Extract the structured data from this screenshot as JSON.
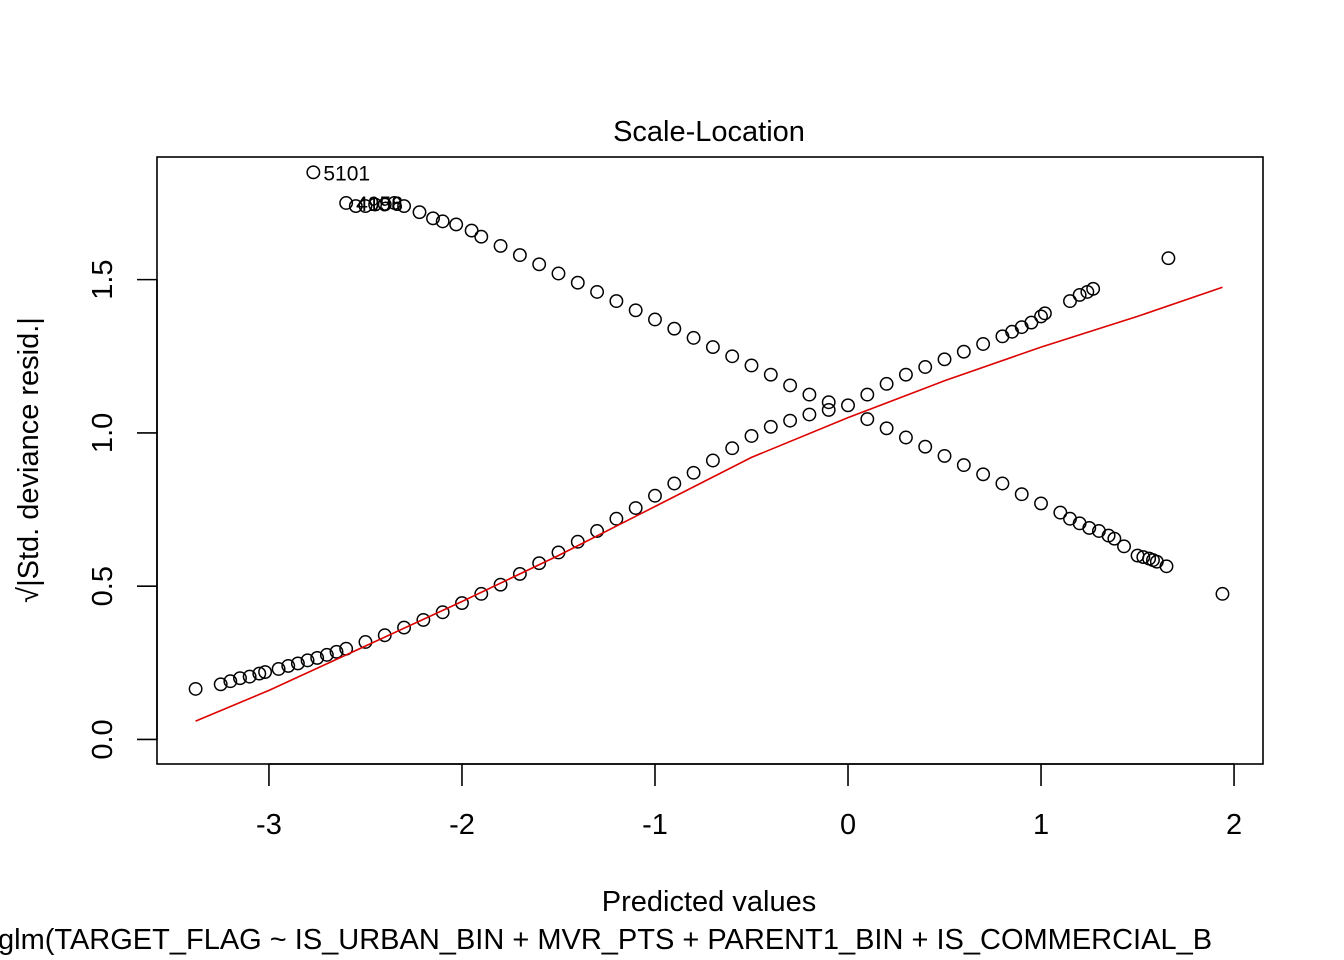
{
  "chart_data": {
    "type": "scatter",
    "title": "Scale-Location",
    "xlabel": "Predicted values",
    "ylabel": "√|Std. deviance resid.|",
    "ylabel_radical": "√",
    "ylabel_text": "|Std. deviance resid.|",
    "subtitle": "glm(TARGET_FLAG ~ IS_URBAN_BIN + MVR_PTS + PARENT1_BIN + IS_COMMERCIAL_B",
    "xlim": [
      -3.58,
      2.15
    ],
    "ylim": [
      -0.08,
      1.9
    ],
    "xticks": [
      -3,
      -2,
      -1,
      0,
      1,
      2
    ],
    "yticks": [
      0.0,
      0.5,
      1.0,
      1.5
    ],
    "ytick_labels": [
      "0.0",
      "0.5",
      "1.0",
      "1.5"
    ],
    "grid": false,
    "point_color": "#000000",
    "smooth_color": "#dd0000",
    "series": [
      {
        "values": [
          {
            "x": -3.38,
            "y": 0.165
          },
          {
            "x": -3.25,
            "y": 0.18
          },
          {
            "x": -3.2,
            "y": 0.19
          },
          {
            "x": -3.15,
            "y": 0.2
          },
          {
            "x": -3.1,
            "y": 0.205
          },
          {
            "x": -3.05,
            "y": 0.215
          },
          {
            "x": -3.02,
            "y": 0.22
          },
          {
            "x": -2.95,
            "y": 0.23
          },
          {
            "x": -2.9,
            "y": 0.24
          },
          {
            "x": -2.85,
            "y": 0.248
          },
          {
            "x": -2.8,
            "y": 0.258
          },
          {
            "x": -2.75,
            "y": 0.266
          },
          {
            "x": -2.7,
            "y": 0.276
          },
          {
            "x": -2.65,
            "y": 0.286
          },
          {
            "x": -2.6,
            "y": 0.296
          },
          {
            "x": -2.5,
            "y": 0.318
          },
          {
            "x": -2.4,
            "y": 0.34
          },
          {
            "x": -2.3,
            "y": 0.365
          },
          {
            "x": -2.2,
            "y": 0.39
          },
          {
            "x": -2.1,
            "y": 0.415
          },
          {
            "x": -2.0,
            "y": 0.445
          },
          {
            "x": -1.9,
            "y": 0.475
          },
          {
            "x": -1.8,
            "y": 0.505
          },
          {
            "x": -1.7,
            "y": 0.54
          },
          {
            "x": -1.6,
            "y": 0.575
          },
          {
            "x": -1.5,
            "y": 0.61
          },
          {
            "x": -1.4,
            "y": 0.645
          },
          {
            "x": -1.3,
            "y": 0.68
          },
          {
            "x": -1.2,
            "y": 0.72
          },
          {
            "x": -1.1,
            "y": 0.755
          },
          {
            "x": -1.0,
            "y": 0.795
          },
          {
            "x": -0.9,
            "y": 0.835
          },
          {
            "x": -0.8,
            "y": 0.87
          },
          {
            "x": -0.7,
            "y": 0.91
          },
          {
            "x": -0.6,
            "y": 0.95
          },
          {
            "x": -0.5,
            "y": 0.99
          },
          {
            "x": -0.4,
            "y": 1.02
          },
          {
            "x": -0.3,
            "y": 1.04
          },
          {
            "x": -0.2,
            "y": 1.06
          },
          {
            "x": -0.1,
            "y": 1.075
          },
          {
            "x": 0.0,
            "y": 1.09
          },
          {
            "x": 0.1,
            "y": 1.125
          },
          {
            "x": 0.2,
            "y": 1.16
          },
          {
            "x": 0.3,
            "y": 1.19
          },
          {
            "x": 0.4,
            "y": 1.215
          },
          {
            "x": 0.5,
            "y": 1.24
          },
          {
            "x": 0.6,
            "y": 1.265
          },
          {
            "x": 0.7,
            "y": 1.29
          },
          {
            "x": 0.8,
            "y": 1.315
          },
          {
            "x": 0.85,
            "y": 1.33
          },
          {
            "x": 0.9,
            "y": 1.345
          },
          {
            "x": 0.95,
            "y": 1.36
          },
          {
            "x": 1.0,
            "y": 1.38
          },
          {
            "x": 1.02,
            "y": 1.39
          },
          {
            "x": 1.15,
            "y": 1.43
          },
          {
            "x": 1.2,
            "y": 1.45
          },
          {
            "x": 1.24,
            "y": 1.46
          },
          {
            "x": 1.27,
            "y": 1.47
          },
          {
            "x": 1.66,
            "y": 1.57
          },
          {
            "x": -2.77,
            "y": 1.85
          },
          {
            "x": -2.6,
            "y": 1.75
          },
          {
            "x": -2.55,
            "y": 1.74
          },
          {
            "x": -2.5,
            "y": 1.74
          },
          {
            "x": -2.45,
            "y": 1.745
          },
          {
            "x": -2.4,
            "y": 1.745
          },
          {
            "x": -2.35,
            "y": 1.75
          },
          {
            "x": -2.3,
            "y": 1.74
          },
          {
            "x": -2.22,
            "y": 1.72
          },
          {
            "x": -2.15,
            "y": 1.7
          },
          {
            "x": -2.1,
            "y": 1.69
          },
          {
            "x": -2.03,
            "y": 1.68
          },
          {
            "x": -1.95,
            "y": 1.66
          },
          {
            "x": -1.9,
            "y": 1.64
          },
          {
            "x": -1.8,
            "y": 1.61
          },
          {
            "x": -1.7,
            "y": 1.58
          },
          {
            "x": -1.6,
            "y": 1.55
          },
          {
            "x": -1.5,
            "y": 1.52
          },
          {
            "x": -1.4,
            "y": 1.49
          },
          {
            "x": -1.3,
            "y": 1.46
          },
          {
            "x": -1.2,
            "y": 1.43
          },
          {
            "x": -1.1,
            "y": 1.4
          },
          {
            "x": -1.0,
            "y": 1.37
          },
          {
            "x": -0.9,
            "y": 1.34
          },
          {
            "x": -0.8,
            "y": 1.31
          },
          {
            "x": -0.7,
            "y": 1.28
          },
          {
            "x": -0.6,
            "y": 1.25
          },
          {
            "x": -0.5,
            "y": 1.22
          },
          {
            "x": -0.4,
            "y": 1.19
          },
          {
            "x": -0.3,
            "y": 1.155
          },
          {
            "x": -0.2,
            "y": 1.125
          },
          {
            "x": -0.1,
            "y": 1.1
          },
          {
            "x": 0.1,
            "y": 1.045
          },
          {
            "x": 0.2,
            "y": 1.015
          },
          {
            "x": 0.3,
            "y": 0.985
          },
          {
            "x": 0.4,
            "y": 0.955
          },
          {
            "x": 0.5,
            "y": 0.925
          },
          {
            "x": 0.6,
            "y": 0.895
          },
          {
            "x": 0.7,
            "y": 0.865
          },
          {
            "x": 0.8,
            "y": 0.835
          },
          {
            "x": 0.9,
            "y": 0.8
          },
          {
            "x": 1.0,
            "y": 0.77
          },
          {
            "x": 1.1,
            "y": 0.74
          },
          {
            "x": 1.15,
            "y": 0.72
          },
          {
            "x": 1.2,
            "y": 0.705
          },
          {
            "x": 1.25,
            "y": 0.69
          },
          {
            "x": 1.3,
            "y": 0.68
          },
          {
            "x": 1.35,
            "y": 0.665
          },
          {
            "x": 1.38,
            "y": 0.655
          },
          {
            "x": 1.43,
            "y": 0.63
          },
          {
            "x": 1.5,
            "y": 0.6
          },
          {
            "x": 1.53,
            "y": 0.595
          },
          {
            "x": 1.56,
            "y": 0.59
          },
          {
            "x": 1.58,
            "y": 0.585
          },
          {
            "x": 1.6,
            "y": 0.58
          },
          {
            "x": 1.65,
            "y": 0.565
          },
          {
            "x": 1.94,
            "y": 0.475
          }
        ]
      }
    ],
    "smooth_line": [
      {
        "x": -3.38,
        "y": 0.06
      },
      {
        "x": -3.0,
        "y": 0.16
      },
      {
        "x": -2.5,
        "y": 0.305
      },
      {
        "x": -2.0,
        "y": 0.45
      },
      {
        "x": -1.5,
        "y": 0.6
      },
      {
        "x": -1.0,
        "y": 0.76
      },
      {
        "x": -0.5,
        "y": 0.92
      },
      {
        "x": 0.0,
        "y": 1.05
      },
      {
        "x": 0.5,
        "y": 1.17
      },
      {
        "x": 1.0,
        "y": 1.28
      },
      {
        "x": 1.5,
        "y": 1.38
      },
      {
        "x": 1.94,
        "y": 1.475
      }
    ],
    "annotations": [
      {
        "text": "5101",
        "x": -2.77,
        "y": 1.85
      },
      {
        "text": "4958",
        "x": -2.6,
        "y": 1.75
      },
      {
        "text": "4196",
        "x": -2.6,
        "y": 1.75
      }
    ]
  }
}
